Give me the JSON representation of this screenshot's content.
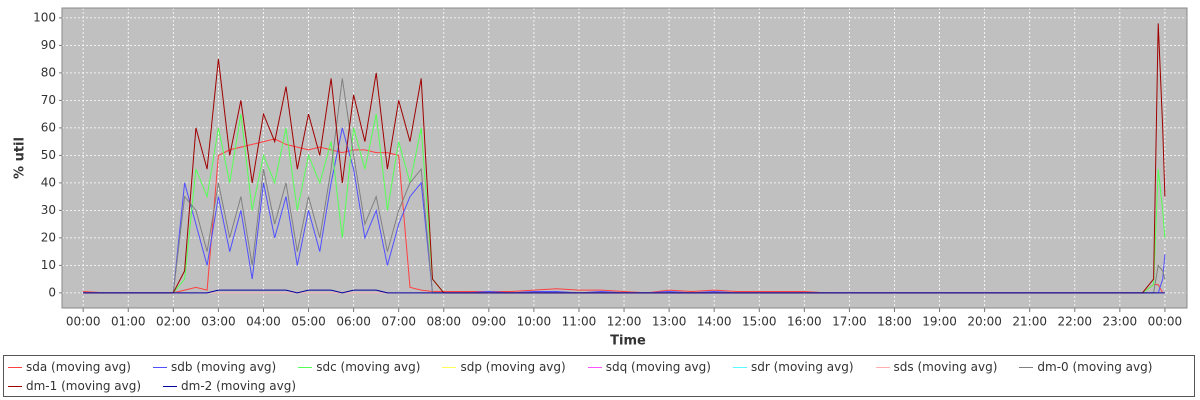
{
  "chart_data": {
    "type": "line",
    "xlabel": "Time",
    "ylabel": "% util",
    "x": [
      0,
      0.5,
      1,
      1.5,
      2,
      2.25,
      2.5,
      2.75,
      3,
      3.25,
      3.5,
      3.75,
      4,
      4.25,
      4.5,
      4.75,
      5,
      5.25,
      5.5,
      5.75,
      6,
      6.25,
      6.5,
      6.75,
      7,
      7.25,
      7.5,
      7.75,
      8,
      8.5,
      9,
      9.5,
      10,
      10.5,
      11,
      11.5,
      12,
      12.5,
      13,
      13.5,
      14,
      14.5,
      15,
      15.5,
      16,
      16.5,
      17,
      17.5,
      18,
      18.5,
      19,
      19.5,
      20,
      20.5,
      21,
      21.5,
      22,
      22.5,
      23,
      23.5,
      23.75,
      23.85,
      23.95,
      24
    ],
    "xlim": [
      -0.47,
      24.49
    ],
    "xticks": [
      {
        "value": 0,
        "label": "00:00"
      },
      {
        "value": 1,
        "label": "01:00"
      },
      {
        "value": 2,
        "label": "02:00"
      },
      {
        "value": 3,
        "label": "03:00"
      },
      {
        "value": 4,
        "label": "04:00"
      },
      {
        "value": 5,
        "label": "05:00"
      },
      {
        "value": 6,
        "label": "06:00"
      },
      {
        "value": 7,
        "label": "07:00"
      },
      {
        "value": 8,
        "label": "08:00"
      },
      {
        "value": 9,
        "label": "09:00"
      },
      {
        "value": 10,
        "label": "10:00"
      },
      {
        "value": 11,
        "label": "11:00"
      },
      {
        "value": 12,
        "label": "12:00"
      },
      {
        "value": 13,
        "label": "13:00"
      },
      {
        "value": 14,
        "label": "14:00"
      },
      {
        "value": 15,
        "label": "15:00"
      },
      {
        "value": 16,
        "label": "16:00"
      },
      {
        "value": 17,
        "label": "17:00"
      },
      {
        "value": 18,
        "label": "18:00"
      },
      {
        "value": 19,
        "label": "19:00"
      },
      {
        "value": 20,
        "label": "20:00"
      },
      {
        "value": 21,
        "label": "21:00"
      },
      {
        "value": 22,
        "label": "22:00"
      },
      {
        "value": 23,
        "label": "23:00"
      },
      {
        "value": 24,
        "label": "00:00"
      }
    ],
    "ylim": [
      -5.5,
      103.6
    ],
    "yticks": [
      0,
      10,
      20,
      30,
      40,
      50,
      60,
      70,
      80,
      90,
      100
    ],
    "grid": true,
    "series": [
      {
        "name": "sda (moving avg)",
        "color": "#ff4040",
        "values": [
          0.5,
          0,
          0,
          0,
          0,
          1,
          2,
          1,
          50,
          52,
          53,
          54,
          55,
          56,
          54,
          53,
          52,
          53,
          52,
          51,
          52,
          52,
          51,
          51,
          50,
          2,
          1,
          0.5,
          0.5,
          0.5,
          0.5,
          0.5,
          1,
          1.5,
          1,
          1,
          0.5,
          0,
          1,
          0.5,
          1,
          0.5,
          0.5,
          0.5,
          0.5,
          0,
          0,
          0,
          0,
          0,
          0,
          0,
          0,
          0,
          0,
          0,
          0,
          0,
          0,
          0,
          3,
          3,
          0,
          0
        ]
      },
      {
        "name": "sdb (moving avg)",
        "color": "#4f4fff",
        "values": [
          0,
          0,
          0,
          0,
          0,
          40,
          25,
          10,
          35,
          15,
          30,
          5,
          40,
          20,
          35,
          10,
          30,
          15,
          40,
          60,
          45,
          20,
          30,
          10,
          25,
          35,
          40,
          0,
          0,
          0,
          0.5,
          0,
          0.5,
          0.5,
          0,
          0.5,
          0,
          0,
          0.5,
          0,
          0.5,
          0,
          0,
          0,
          0,
          0,
          0,
          0,
          0,
          0,
          0,
          0,
          0,
          0,
          0,
          0,
          0,
          0,
          0,
          0,
          0,
          0,
          5,
          14
        ]
      },
      {
        "name": "sdc (moving avg)",
        "color": "#55ff55",
        "values": [
          0,
          0,
          0,
          0,
          0,
          5,
          45,
          35,
          60,
          40,
          65,
          30,
          50,
          40,
          60,
          30,
          50,
          40,
          55,
          20,
          60,
          45,
          65,
          30,
          55,
          40,
          60,
          5,
          0,
          0,
          0,
          0,
          0,
          0,
          0,
          0,
          0,
          0,
          0,
          0,
          0,
          0,
          0,
          0,
          0,
          0,
          0,
          0,
          0,
          0,
          0,
          0,
          0,
          0,
          0,
          0,
          0,
          0,
          0,
          0,
          3,
          45,
          30,
          20
        ]
      },
      {
        "name": "sdp (moving avg)",
        "color": "#ffff55",
        "values": [
          0,
          0,
          0,
          0,
          0,
          0,
          0,
          0,
          0,
          0,
          0,
          0,
          0,
          0,
          0,
          0,
          0,
          0,
          0,
          0,
          0,
          0,
          0,
          0,
          0,
          0,
          0,
          0,
          0,
          0,
          0,
          0,
          0,
          0,
          0,
          0,
          0,
          0,
          0,
          0,
          0,
          0,
          0,
          0,
          0,
          0,
          0,
          0,
          0,
          0,
          0,
          0,
          0,
          0,
          0,
          0,
          0,
          0,
          0,
          0,
          0,
          0,
          0,
          0
        ]
      },
      {
        "name": "sdq (moving avg)",
        "color": "#ff55ff",
        "values": [
          0,
          0,
          0,
          0,
          0,
          0,
          0,
          0,
          0,
          0,
          0,
          0,
          0,
          0,
          0,
          0,
          0,
          0,
          0,
          0,
          0,
          0,
          0,
          0,
          0,
          0,
          0,
          0,
          0,
          0,
          0,
          0,
          0,
          0,
          0,
          0,
          0,
          0,
          0,
          0,
          0,
          0,
          0,
          0,
          0,
          0,
          0,
          0,
          0,
          0,
          0,
          0,
          0,
          0,
          0,
          0,
          0,
          0,
          0,
          0,
          0,
          0,
          0,
          0
        ]
      },
      {
        "name": "sdr (moving avg)",
        "color": "#55ffff",
        "values": [
          0,
          0,
          0,
          0,
          0,
          0,
          0,
          0,
          0,
          0,
          0,
          0,
          0,
          0,
          0,
          0,
          0,
          0,
          0,
          0,
          0,
          0,
          0,
          0,
          0,
          0,
          0,
          0,
          0,
          0,
          0,
          0,
          0,
          0,
          0,
          0,
          0,
          0,
          0,
          0,
          0,
          0,
          0,
          0,
          0,
          0,
          0,
          0,
          0,
          0,
          0,
          0,
          0,
          0,
          0,
          0,
          0,
          0,
          0,
          0,
          0,
          0,
          0,
          0
        ]
      },
      {
        "name": "sds (moving avg)",
        "color": "#ffafaf",
        "values": [
          0,
          0,
          0,
          0,
          0,
          0,
          0,
          0,
          0,
          0,
          0,
          0,
          0,
          0,
          0,
          0,
          0,
          0,
          0,
          0,
          0,
          0,
          0,
          0,
          0,
          0,
          0,
          0,
          0,
          0,
          0,
          0,
          0,
          0,
          0,
          0,
          0,
          0,
          0,
          0,
          0,
          0,
          0,
          0,
          0,
          0,
          0,
          0,
          0,
          0,
          0,
          0,
          0,
          0,
          0,
          0,
          0,
          0,
          0,
          0,
          0,
          0,
          0,
          0
        ]
      },
      {
        "name": "dm-0 (moving avg)",
        "color": "#808080",
        "values": [
          0,
          0,
          0,
          0,
          0,
          35,
          30,
          15,
          40,
          20,
          35,
          10,
          45,
          25,
          40,
          15,
          35,
          20,
          45,
          78,
          50,
          25,
          35,
          15,
          30,
          40,
          45,
          0,
          0,
          0,
          0,
          0,
          0,
          0,
          0,
          0,
          0,
          0,
          0,
          0,
          0,
          0,
          0,
          0,
          0,
          0,
          0,
          0,
          0,
          0,
          0,
          0,
          0,
          0,
          0,
          0,
          0,
          0,
          0,
          0,
          0,
          10,
          8,
          5
        ]
      },
      {
        "name": "dm-1 (moving avg)",
        "color": "#a00000",
        "values": [
          0,
          0,
          0,
          0,
          0,
          8,
          60,
          45,
          85,
          50,
          70,
          40,
          65,
          55,
          75,
          45,
          65,
          50,
          78,
          40,
          72,
          55,
          80,
          45,
          70,
          55,
          78,
          5,
          0,
          0,
          0,
          0,
          0,
          0,
          0,
          0,
          0,
          0,
          0,
          0,
          0,
          0,
          0,
          0,
          0,
          0,
          0,
          0,
          0,
          0,
          0,
          0,
          0,
          0,
          0,
          0,
          0,
          0,
          0,
          0,
          5,
          98,
          60,
          35
        ]
      },
      {
        "name": "dm-2 (moving avg)",
        "color": "#0000a0",
        "values": [
          0,
          0,
          0,
          0,
          0,
          0,
          0,
          0,
          1,
          1,
          1,
          1,
          1,
          1,
          1,
          0,
          1,
          1,
          1,
          0,
          1,
          1,
          1,
          0,
          0,
          0,
          0,
          0,
          0,
          0,
          0,
          0,
          0,
          0,
          0,
          0,
          0,
          0,
          0,
          0,
          0,
          0,
          0,
          0,
          0,
          0,
          0,
          0,
          0,
          0,
          0,
          0,
          0,
          0,
          0,
          0,
          0,
          0,
          0,
          0,
          0,
          0,
          0,
          0
        ]
      }
    ]
  }
}
